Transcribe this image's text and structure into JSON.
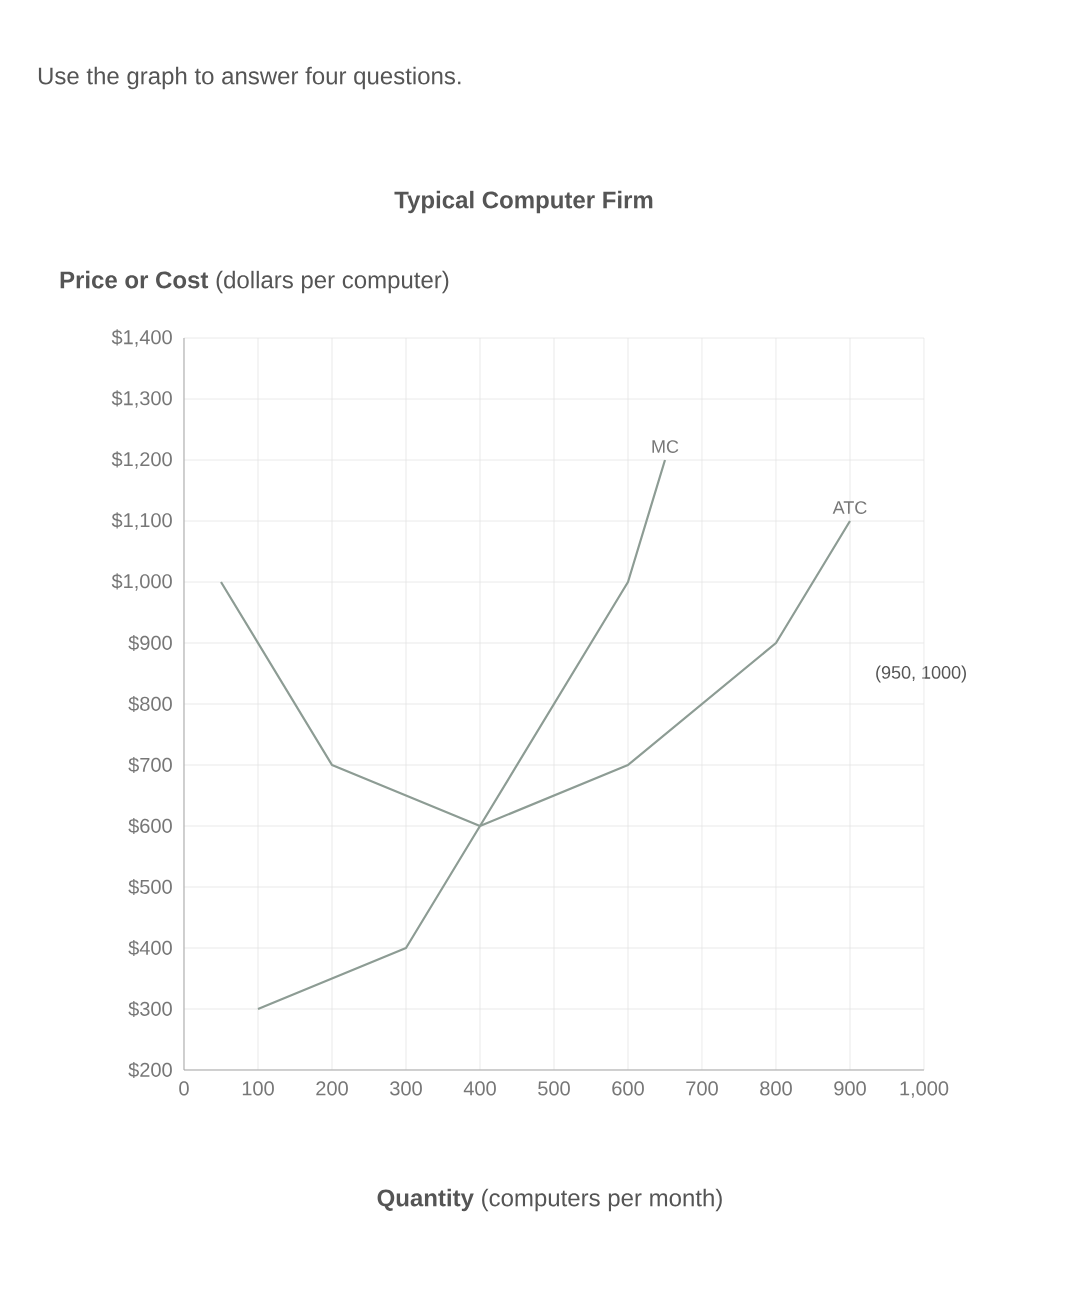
{
  "chart_data": {
    "type": "line",
    "title": "Typical Computer Firm",
    "ylabel": "**Price or Cost** (dollars per computer)",
    "xlabel": "**Quantity** (computers per month)",
    "annotations": [
      "Use the graph to answer four questions.",
      "(950, 1000)"
    ],
    "series": [
      {
        "name": "MC",
        "color": "#8d9c94",
        "x": [
          100,
          300,
          400,
          600,
          650
        ],
        "values": [
          300,
          400,
          600,
          1000,
          1200
        ]
      },
      {
        "name": "ATC",
        "color": "#8d9c94",
        "x": [
          50,
          200,
          400,
          600,
          800,
          900
        ],
        "values": [
          1000,
          700,
          600,
          700,
          900,
          1100
        ]
      }
    ],
    "xlim": [
      0,
      1000
    ],
    "ylim": [
      200,
      1400
    ],
    "xticks": [
      0,
      100,
      200,
      300,
      400,
      500,
      600,
      700,
      800,
      900,
      {
        "value": 1000,
        "label": "1,000"
      }
    ],
    "yticks": [
      {
        "value": 200,
        "label": "$200"
      },
      {
        "value": 300,
        "label": "$300"
      },
      {
        "value": 400,
        "label": "$400"
      },
      {
        "value": 500,
        "label": "$500"
      },
      {
        "value": 600,
        "label": "$600"
      },
      {
        "value": 700,
        "label": "$700"
      },
      {
        "value": 800,
        "label": "$800"
      },
      {
        "value": 900,
        "label": "$900"
      },
      {
        "value": 1000,
        "label": "$1,000"
      },
      {
        "value": 1100,
        "label": "$1,100"
      },
      {
        "value": 1200,
        "label": "$1,200"
      },
      {
        "value": 1300,
        "label": "$1,300"
      },
      {
        "value": 1400,
        "label": "$1,400"
      }
    ],
    "grid": true,
    "marker": "none",
    "line_style": "solid"
  }
}
